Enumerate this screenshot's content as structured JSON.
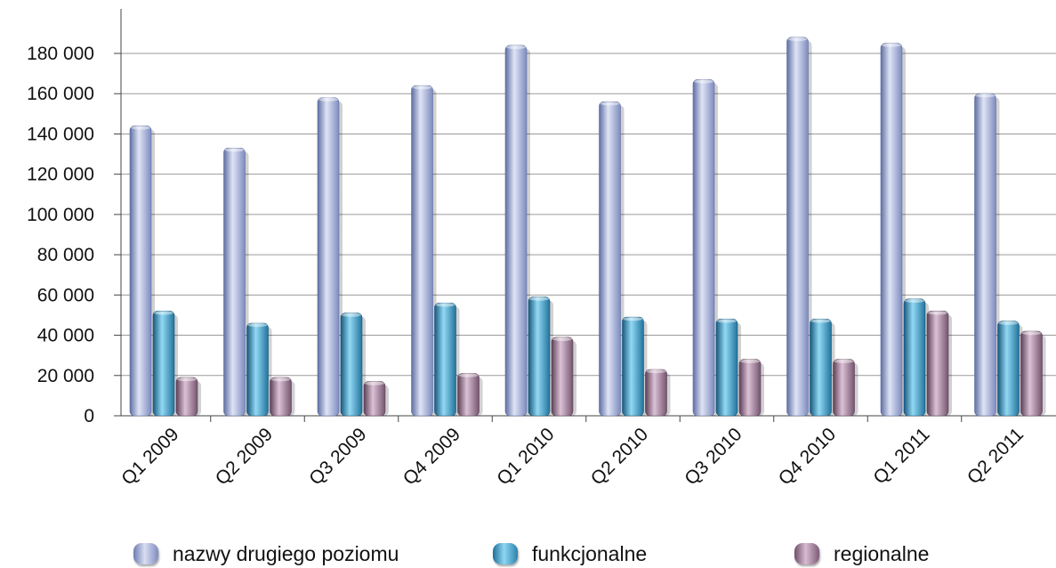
{
  "chart_data": {
    "type": "bar",
    "categories": [
      "Q1 2009",
      "Q2 2009",
      "Q3 2009",
      "Q4 2009",
      "Q1 2010",
      "Q2 2010",
      "Q3 2010",
      "Q4 2010",
      "Q1 2011",
      "Q2 2011"
    ],
    "series": [
      {
        "name": "nazwy drugiego poziomu",
        "color": "#9aa7d2",
        "values": [
          144000,
          133000,
          158000,
          164000,
          184000,
          156000,
          167000,
          188000,
          185000,
          160000
        ]
      },
      {
        "name": "funkcjonalne",
        "color": "#3e9cc6",
        "values": [
          52000,
          46000,
          51000,
          56000,
          59000,
          49000,
          48000,
          48000,
          58000,
          47000
        ]
      },
      {
        "name": "regionalne",
        "color": "#9b7593",
        "values": [
          19000,
          19000,
          17000,
          21000,
          39000,
          23000,
          28000,
          28000,
          52000,
          42000
        ]
      }
    ],
    "yticks": [
      "0",
      "20 000",
      "40 000",
      "60 000",
      "80 000",
      "100 000",
      "120 000",
      "140 000",
      "160 000",
      "180 000"
    ],
    "ylim": [
      0,
      200000
    ],
    "grid": true,
    "legend_position": "bottom"
  }
}
